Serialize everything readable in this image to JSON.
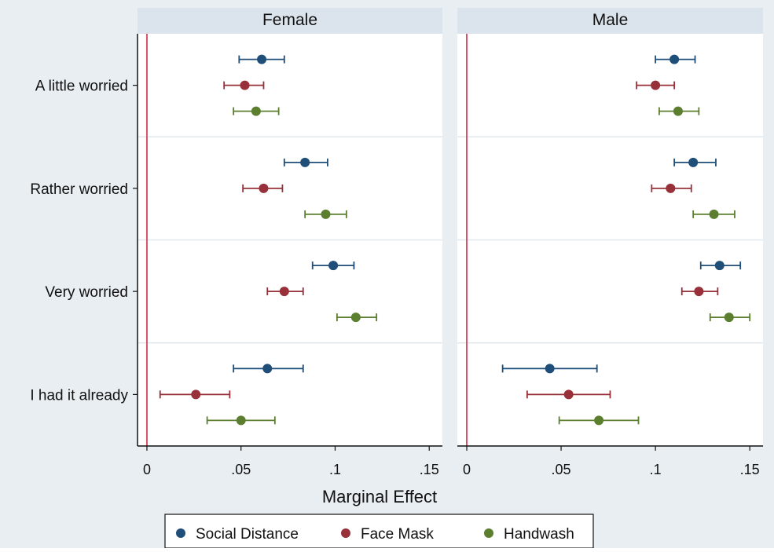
{
  "chart_data": {
    "type": "scatter",
    "subtype": "dot-and-whisker",
    "xlabel": "Marginal Effect",
    "x_ticks": [
      0,
      0.05,
      0.1,
      0.15
    ],
    "x_tick_labels": [
      "0",
      ".05",
      ".1",
      ".15"
    ],
    "xlim": [
      -0.005,
      0.157
    ],
    "reference_line_x": 0,
    "categories": [
      "A little worried",
      "Rather worried",
      "Very worried",
      "I had it already"
    ],
    "legend_position": "bottom",
    "colors": {
      "Social Distance": "#1f4e79",
      "Face Mask": "#98303a",
      "Handwash": "#5b7f2e",
      "reference_line": "#d9536a",
      "panel_header": "#dbe4ec",
      "background": "#e9eef2"
    },
    "series_names": [
      "Social Distance",
      "Face Mask",
      "Handwash"
    ],
    "panels": [
      {
        "title": "Female",
        "series": [
          {
            "name": "Social Distance",
            "estimates": [
              0.061,
              0.084,
              0.099,
              0.064
            ],
            "lower": [
              0.049,
              0.073,
              0.088,
              0.046
            ],
            "upper": [
              0.073,
              0.096,
              0.11,
              0.083
            ]
          },
          {
            "name": "Face Mask",
            "estimates": [
              0.052,
              0.062,
              0.073,
              0.026
            ],
            "lower": [
              0.041,
              0.051,
              0.064,
              0.007
            ],
            "upper": [
              0.062,
              0.072,
              0.083,
              0.044
            ]
          },
          {
            "name": "Handwash",
            "estimates": [
              0.058,
              0.095,
              0.111,
              0.05
            ],
            "lower": [
              0.046,
              0.084,
              0.101,
              0.032
            ],
            "upper": [
              0.07,
              0.106,
              0.122,
              0.068
            ]
          }
        ]
      },
      {
        "title": "Male",
        "series": [
          {
            "name": "Social Distance",
            "estimates": [
              0.11,
              0.12,
              0.134,
              0.044
            ],
            "lower": [
              0.1,
              0.11,
              0.124,
              0.019
            ],
            "upper": [
              0.121,
              0.132,
              0.145,
              0.069
            ]
          },
          {
            "name": "Face Mask",
            "estimates": [
              0.1,
              0.108,
              0.123,
              0.054
            ],
            "lower": [
              0.09,
              0.098,
              0.114,
              0.032
            ],
            "upper": [
              0.11,
              0.119,
              0.133,
              0.076
            ]
          },
          {
            "name": "Handwash",
            "estimates": [
              0.112,
              0.131,
              0.139,
              0.07
            ],
            "lower": [
              0.102,
              0.12,
              0.129,
              0.049
            ],
            "upper": [
              0.123,
              0.142,
              0.15,
              0.091
            ]
          }
        ]
      }
    ]
  }
}
